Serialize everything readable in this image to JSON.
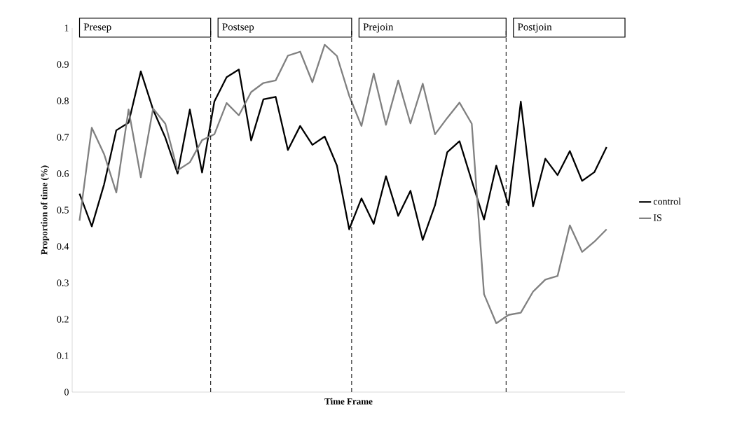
{
  "chart_data": {
    "type": "line",
    "xlabel": "Time Frame",
    "ylabel": "Proportion of time (%)",
    "categories": [
      null,
      null,
      null,
      null,
      null,
      null,
      null,
      null,
      null,
      null,
      null,
      null,
      null,
      null,
      null,
      null,
      null,
      null,
      null,
      null,
      null,
      null,
      null,
      null,
      null,
      null,
      null,
      null,
      null,
      null,
      null,
      null,
      null,
      null,
      null,
      null,
      null,
      null,
      null,
      null,
      null,
      null,
      null,
      null
    ],
    "ylim": [
      0,
      1
    ],
    "yticks": [
      0,
      0.1,
      0.2,
      0.3,
      0.4,
      0.5,
      0.6,
      0.7,
      0.8,
      0.9,
      1
    ],
    "tick_labels": "y",
    "legend": "right",
    "grid": false,
    "marker": "none",
    "line_style": "solid",
    "series": [
      {
        "name": "control",
        "color": "#000000",
        "values": [
          0.545,
          0.455,
          0.57,
          0.719,
          0.74,
          0.881,
          0.776,
          0.699,
          0.6,
          0.776,
          0.603,
          0.798,
          0.865,
          0.886,
          0.691,
          0.804,
          0.811,
          0.665,
          0.731,
          0.679,
          0.702,
          0.622,
          0.447,
          0.532,
          0.462,
          0.593,
          0.484,
          0.553,
          0.418,
          0.513,
          0.659,
          0.689,
          0.58,
          0.474,
          0.622,
          0.513,
          0.798,
          0.51,
          0.641,
          0.596,
          0.662,
          0.58,
          0.604,
          0.673
        ]
      },
      {
        "name": "IS",
        "color": "#808080",
        "values": [
          0.471,
          0.726,
          0.654,
          0.548,
          0.776,
          0.59,
          0.779,
          0.737,
          0.609,
          0.631,
          0.692,
          0.708,
          0.794,
          0.76,
          0.824,
          0.849,
          0.856,
          0.924,
          0.935,
          0.851,
          0.954,
          0.923,
          0.814,
          0.731,
          0.875,
          0.734,
          0.856,
          0.738,
          0.847,
          0.708,
          0.753,
          0.795,
          0.737,
          0.269,
          0.189,
          0.212,
          0.218,
          0.276,
          0.309,
          0.319,
          0.458,
          0.385,
          0.413,
          0.447
        ]
      }
    ],
    "annotations": [
      "Presep",
      "Postsep",
      "Prejoin",
      "Postjoin"
    ]
  }
}
